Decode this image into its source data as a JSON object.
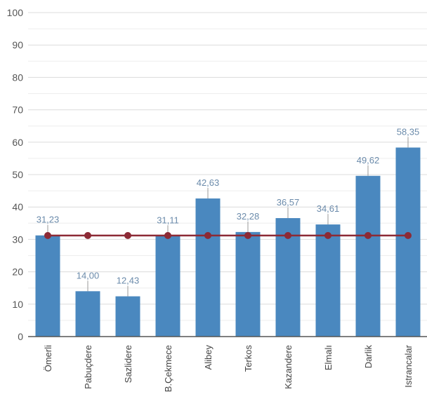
{
  "chart_data": {
    "type": "bar",
    "title": "",
    "xlabel": "",
    "ylabel": "",
    "ylim": [
      0,
      100
    ],
    "yticks": [
      0,
      10,
      20,
      30,
      40,
      50,
      60,
      70,
      80,
      90,
      100
    ],
    "grid": true,
    "categories": [
      "Ömerli",
      "Pabuçdere",
      "Sazlidere",
      "B.Çekmece",
      "Alibey",
      "Terkos",
      "Kazandere",
      "Elmalı",
      "Darlik",
      "Istrancalar"
    ],
    "series": [
      {
        "name": "bars",
        "type": "bar",
        "color": "#4a88bf",
        "values": [
          31.23,
          14.0,
          12.43,
          31.11,
          42.63,
          32.28,
          36.57,
          34.61,
          49.62,
          58.35
        ],
        "labels": [
          "31,23",
          "14,00",
          "12,43",
          "31,11",
          "42,63",
          "32,28",
          "36,57",
          "34,61",
          "49,62",
          "58,35"
        ]
      },
      {
        "name": "reference line",
        "type": "line",
        "color": "#8c2a35",
        "values": [
          31.2,
          31.2,
          31.2,
          31.2,
          31.2,
          31.2,
          31.2,
          31.2,
          31.2,
          31.2
        ]
      }
    ]
  }
}
